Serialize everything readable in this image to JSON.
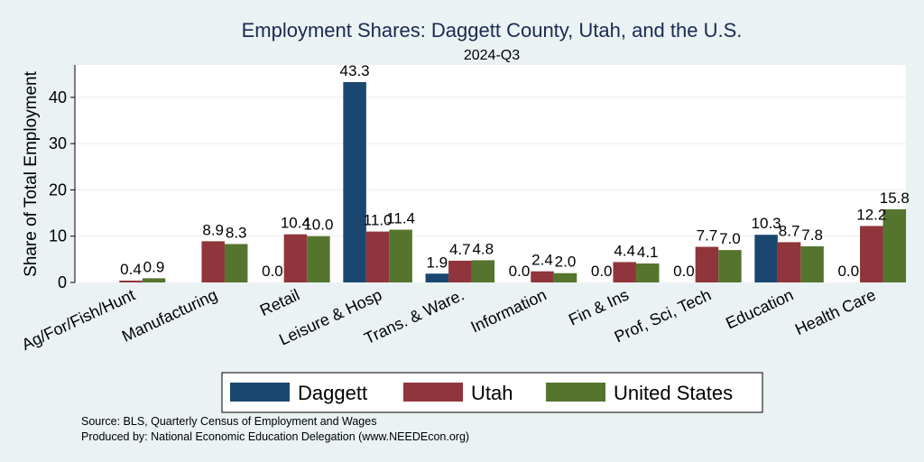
{
  "chart_data": {
    "type": "bar",
    "title": "Employment Shares: Daggett County, Utah, and the U.S.",
    "subtitle": "2024-Q3",
    "ylabel": "Share of Total Employment",
    "xlabel": "",
    "ylim": [
      0,
      47
    ],
    "yticks": [
      "0",
      "10",
      "20",
      "30",
      "40"
    ],
    "grid": true,
    "legend_position": "bottom",
    "categories": [
      "Ag/For/Fish/Hunt",
      "Manufacturing",
      "Retail",
      "Leisure & Hosp",
      "Trans. & Ware.",
      "Information",
      "Fin & Ins",
      "Prof, Sci, Tech",
      "Education",
      "Health Care"
    ],
    "series": [
      {
        "name": "Daggett",
        "color": "#1a476f",
        "values": [
          null,
          null,
          0.0,
          43.3,
          1.9,
          0.0,
          0.0,
          0.0,
          10.3,
          0.0
        ],
        "labels": [
          "",
          "",
          "0.0",
          "43.3",
          "1.9",
          "0.0",
          "0.0",
          "0.0",
          "10.3",
          "0.0"
        ]
      },
      {
        "name": "Utah",
        "color": "#90353b",
        "values": [
          0.4,
          8.9,
          10.4,
          11.0,
          4.7,
          2.4,
          4.4,
          7.7,
          8.7,
          12.2
        ],
        "labels": [
          "0.4",
          "8.9",
          "10.4",
          "11.0",
          "4.7",
          "2.4",
          "4.4",
          "7.7",
          "8.7",
          "12.2"
        ]
      },
      {
        "name": "United States",
        "color": "#55752f",
        "values": [
          0.9,
          8.3,
          10.0,
          11.4,
          4.8,
          2.0,
          4.1,
          7.0,
          7.8,
          15.8
        ],
        "labels": [
          "0.9",
          "8.3",
          "10.0",
          "11.4",
          "4.8",
          "2.0",
          "4.1",
          "7.0",
          "7.8",
          "15.8"
        ]
      }
    ]
  },
  "notes": {
    "source": "Source: BLS, Quarterly Census of Employment and Wages",
    "produced_by": "Produced by: National Economic Education Delegation (www.NEEDEcon.org)"
  }
}
